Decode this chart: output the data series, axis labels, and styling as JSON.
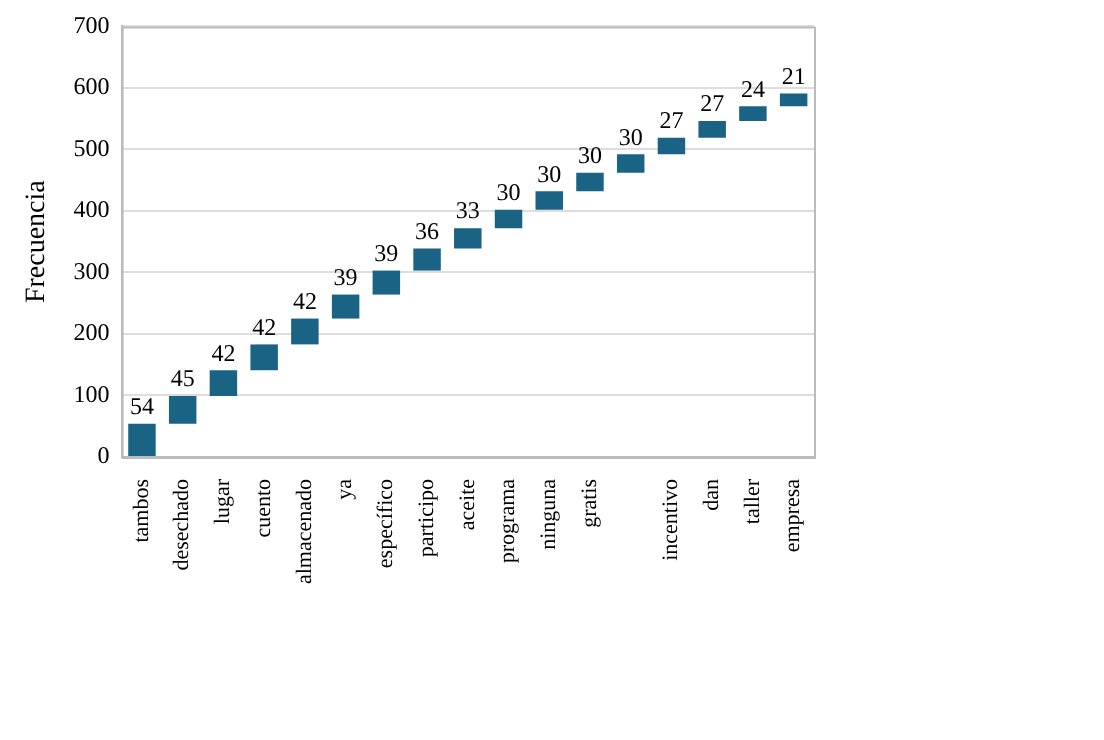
{
  "chart_data": {
    "type": "bar",
    "ylabel": "Frecuencia",
    "categories": [
      "tambos",
      "desechado",
      "lugar",
      "cuento",
      "almacenado",
      "ya",
      "específico",
      "participo",
      "aceite",
      "programa",
      "ninguna",
      "gratis",
      null,
      "incentivo",
      "dan",
      "taller",
      "empresa"
    ],
    "values": [
      54,
      45,
      42,
      42,
      42,
      39,
      39,
      36,
      33,
      30,
      30,
      30,
      30,
      27,
      27,
      24,
      21
    ],
    "base": [
      0,
      54,
      99,
      141,
      183,
      225,
      264,
      303,
      339,
      372,
      402,
      432,
      462,
      492,
      519,
      546,
      570
    ],
    "color": "#1b6385",
    "ylim": [
      0,
      700
    ],
    "yticks": [
      0,
      100,
      200,
      300,
      400,
      500,
      600,
      700
    ],
    "grid": "y",
    "data_labels": true
  }
}
